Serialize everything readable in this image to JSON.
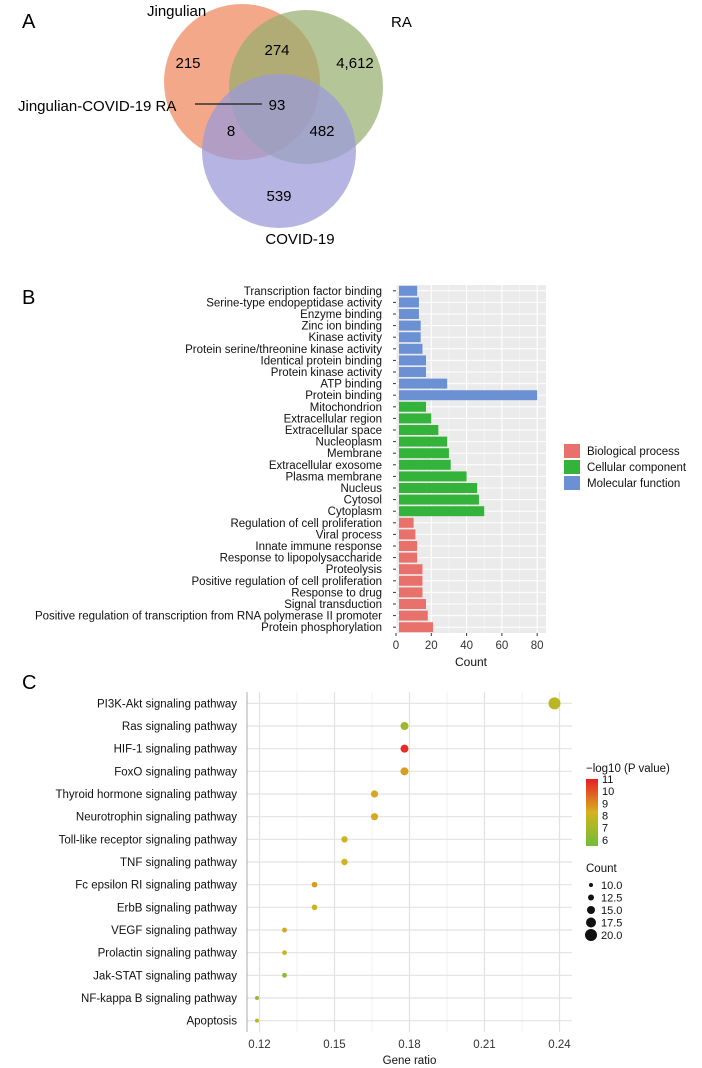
{
  "chart_data": [
    {
      "panel": "A",
      "type": "venn",
      "sets": [
        "Jingulian",
        "RA",
        "COVID-19"
      ],
      "regions": [
        {
          "name": "Jingulian only",
          "value": "215"
        },
        {
          "name": "Jingulian & RA",
          "value": "274"
        },
        {
          "name": "RA only",
          "value": "4,612"
        },
        {
          "name": "Jingulian & RA & COVID-19",
          "value": "93"
        },
        {
          "name": "Jingulian & COVID-19",
          "value": "8"
        },
        {
          "name": "RA & COVID-19",
          "value": "482"
        },
        {
          "name": "COVID-19 only",
          "value": "539"
        }
      ],
      "annotation": "Jingulian-COVID-19 RA",
      "colors": {
        "Jingulian": "#f0936b",
        "RA": "#94ae6c",
        "COVID-19": "#9c9bd8"
      }
    },
    {
      "panel": "B",
      "type": "bar",
      "orientation": "horizontal",
      "xlabel": "Count",
      "xlim": [
        0,
        85
      ],
      "xticks": [
        0,
        20,
        40,
        60,
        80
      ],
      "categories": [
        "Transcription factor binding",
        "Serine-type endopeptidase activity",
        "Enzyme binding",
        "Zinc ion binding",
        "Kinase activity",
        "Protein serine/threonine kinase activity",
        "Identical protein binding",
        "Protein kinase activity",
        "ATP binding",
        "Protein binding",
        "Mitochondrion",
        "Extracellular region",
        "Extracellular space",
        "Nucleoplasm",
        "Membrane",
        "Extracellular exosome",
        "Plasma membrane",
        "Nucleus",
        "Cytosol",
        "Cytoplasm",
        "Regulation of cell proliferation",
        "Viral process",
        "Innate immune response",
        "Response to lipopolysaccharide",
        "Proteolysis",
        "Positive regulation of cell proliferation",
        "Response to drug",
        "Signal transduction",
        "Positive regulation of transcription from RNA polymerase II promoter",
        "Protein phosphorylation"
      ],
      "values": [
        12,
        13,
        13,
        14,
        14,
        15,
        17,
        17,
        29,
        80,
        17,
        20,
        24,
        29,
        30,
        31,
        40,
        46,
        47,
        50,
        10,
        11,
        12,
        12,
        15,
        15,
        15,
        17,
        18,
        21
      ],
      "groups": [
        "MF",
        "MF",
        "MF",
        "MF",
        "MF",
        "MF",
        "MF",
        "MF",
        "MF",
        "MF",
        "CC",
        "CC",
        "CC",
        "CC",
        "CC",
        "CC",
        "CC",
        "CC",
        "CC",
        "CC",
        "BP",
        "BP",
        "BP",
        "BP",
        "BP",
        "BP",
        "BP",
        "BP",
        "BP",
        "BP"
      ],
      "legend": [
        {
          "key": "BP",
          "label": "Biological process",
          "color": "#e8726b"
        },
        {
          "key": "CC",
          "label": "Cellular component",
          "color": "#33b33a"
        },
        {
          "key": "MF",
          "label": "Molecular function",
          "color": "#6b91d4"
        }
      ]
    },
    {
      "panel": "C",
      "type": "scatter",
      "xlabel": "Gene ratio",
      "xlim": [
        0.115,
        0.245
      ],
      "xticks": [
        0.12,
        0.15,
        0.18,
        0.21,
        0.24
      ],
      "xtick_labels": [
        "0.12",
        "0.15",
        "0.18",
        "0.21",
        "0.24"
      ],
      "categories": [
        "PI3K-Akt signaling pathway",
        "Ras signaling pathway",
        "HIF-1 signaling pathway",
        "FoxO signaling pathway",
        "Thyroid hormone signaling pathway",
        "Neurotrophin signaling pathway",
        "Toll-like receptor signaling pathway",
        "TNF signaling pathway",
        "Fc epsilon RI signaling pathway",
        "ErbB signaling pathway",
        "VEGF signaling pathway",
        "Prolactin signaling pathway",
        "Jak-STAT signaling pathway",
        "NF-kappa B signaling pathway",
        "Apoptosis"
      ],
      "x": [
        0.238,
        0.178,
        0.178,
        0.178,
        0.166,
        0.166,
        0.154,
        0.154,
        0.142,
        0.142,
        0.13,
        0.13,
        0.13,
        0.119,
        0.119
      ],
      "count": [
        20,
        15,
        15,
        15,
        14,
        14,
        13,
        13,
        12,
        12,
        11,
        11,
        11,
        10,
        10
      ],
      "neg_log10_p": [
        7.5,
        6.8,
        10.8,
        8.6,
        8.5,
        8.4,
        8.0,
        8.0,
        8.7,
        8.0,
        8.5,
        8.0,
        6.3,
        6.5,
        7.5
      ],
      "color_legend": {
        "title": "−log10 (P value)",
        "ticks": [
          "11",
          "10",
          "9",
          "8",
          "7",
          "6"
        ],
        "min": 5.5,
        "max": 11
      },
      "size_legend": {
        "title": "Count",
        "values": [
          10.0,
          12.5,
          15.0,
          17.5,
          20.0
        ],
        "labels": [
          "10.0",
          "12.5",
          "15.0",
          "17.5",
          "20.0"
        ]
      }
    }
  ],
  "panel_labels": {
    "a": "A",
    "b": "B",
    "c": "C"
  },
  "venn_labels": {
    "jingulian": "Jingulian",
    "ra": "RA",
    "covid": "COVID-19"
  }
}
